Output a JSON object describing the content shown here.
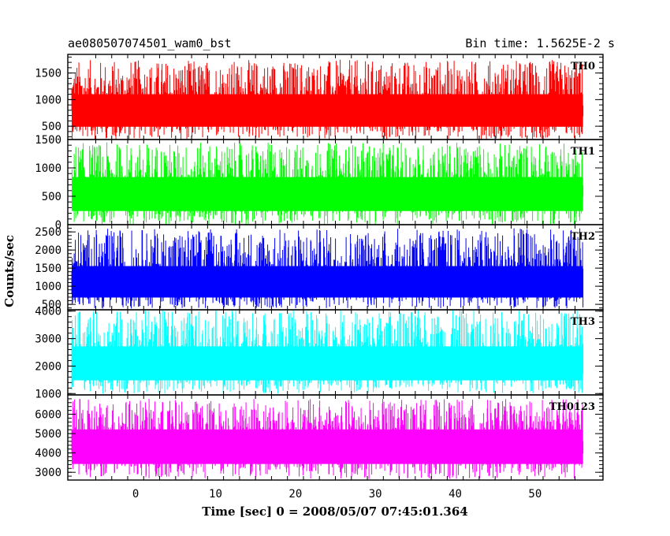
{
  "header": {
    "title": "ae080507074501_wam0_bst",
    "bin_time": "Bin time: 1.5625E-2 s"
  },
  "chart_data": {
    "type": "line",
    "xlabel": "Time [sec] 0 = 2008/05/07 07:45:01.364",
    "ylabel": "Counts/sec",
    "xlim": [
      -8.5,
      58.5
    ],
    "x_ticks": [
      0,
      10,
      20,
      30,
      40,
      50
    ],
    "x_range_data": [
      -8,
      56
    ],
    "panels": [
      {
        "label": "TH0",
        "color": "#ff0000",
        "ylim": [
          250,
          1850
        ],
        "y_ticks": [
          500,
          1000,
          1500
        ],
        "baseline": 250,
        "mean": 850,
        "peak": 1750
      },
      {
        "label": "TH1",
        "color": "#00ff00",
        "ylim": [
          0,
          1500
        ],
        "y_ticks": [
          0,
          500,
          1000,
          1500
        ],
        "baseline": 0,
        "mean": 600,
        "peak": 1450
      },
      {
        "label": "TH2",
        "color": "#0000ff",
        "ylim": [
          350,
          2700
        ],
        "y_ticks": [
          500,
          1000,
          1500,
          2000,
          2500
        ],
        "baseline": 380,
        "mean": 1150,
        "peak": 2600
      },
      {
        "label": "TH3",
        "color": "#00ffff",
        "ylim": [
          950,
          4050
        ],
        "y_ticks": [
          1000,
          2000,
          3000,
          4000
        ],
        "baseline": 1000,
        "mean": 2200,
        "peak": 4050
      },
      {
        "label": "TH0123",
        "color": "#ff00ff",
        "ylim": [
          2600,
          7000
        ],
        "y_ticks": [
          3000,
          4000,
          5000,
          6000
        ],
        "baseline": 2650,
        "mean": 4600,
        "peak": 6800
      }
    ]
  }
}
